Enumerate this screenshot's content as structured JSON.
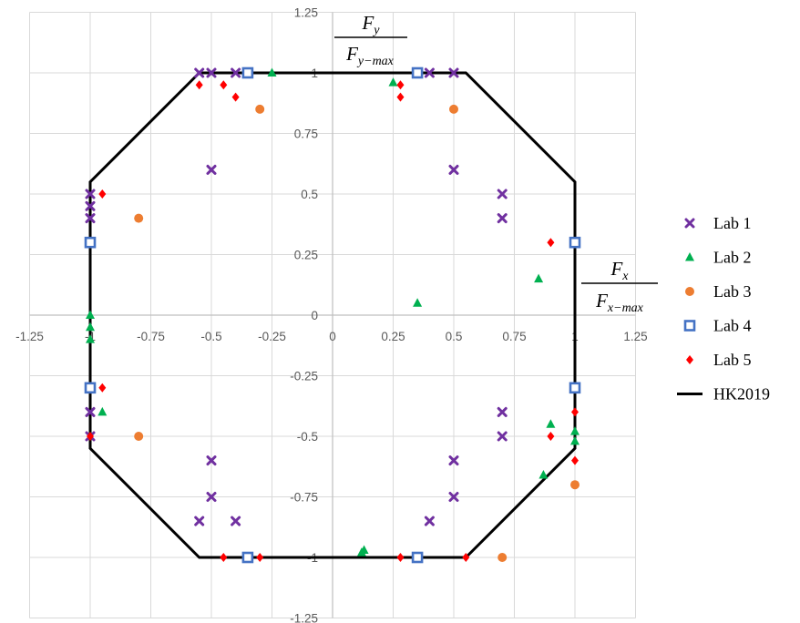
{
  "chart_data": {
    "type": "scatter",
    "xlim": [
      -1.25,
      1.25
    ],
    "ylim": [
      -1.25,
      1.25
    ],
    "x_ticks": [
      "-1.25",
      "-1",
      "-0.75",
      "-0.5",
      "-0.25",
      "0",
      "0.25",
      "0.5",
      "0.75",
      "1",
      "1.25"
    ],
    "y_ticks": [
      "1.25",
      "1",
      "0.75",
      "0.5",
      "0.25",
      "0",
      "-0.25",
      "-0.5",
      "-0.75",
      "-1",
      "-1.25"
    ],
    "grid": true,
    "legend_position": "right",
    "axis_labels": {
      "y": {
        "num": "F",
        "num_sub": "y",
        "den": "F",
        "den_sub": "y−max"
      },
      "x": {
        "num": "F",
        "num_sub": "x",
        "den": "F",
        "den_sub": "x−max"
      }
    },
    "series": [
      {
        "name": "Lab 1",
        "marker": "x",
        "color": "#7030A0",
        "points": [
          [
            -0.55,
            1
          ],
          [
            -0.5,
            1
          ],
          [
            -0.4,
            1
          ],
          [
            0.4,
            1
          ],
          [
            0.5,
            1
          ],
          [
            -0.5,
            0.6
          ],
          [
            0.5,
            0.6
          ],
          [
            0.7,
            0.5
          ],
          [
            0.7,
            0.4
          ],
          [
            -1,
            0.5
          ],
          [
            -1,
            0.45
          ],
          [
            -1,
            0.4
          ],
          [
            -1,
            -0.4
          ],
          [
            -1,
            -0.5
          ],
          [
            0.7,
            -0.4
          ],
          [
            0.7,
            -0.5
          ],
          [
            -0.5,
            -0.6
          ],
          [
            0.5,
            -0.6
          ],
          [
            -0.5,
            -0.75
          ],
          [
            0.5,
            -0.75
          ],
          [
            -0.55,
            -0.85
          ],
          [
            -0.4,
            -0.85
          ],
          [
            0.4,
            -0.85
          ]
        ]
      },
      {
        "name": "Lab 2",
        "marker": "triangle",
        "color": "#00B050",
        "points": [
          [
            -0.25,
            1
          ],
          [
            0.25,
            0.96
          ],
          [
            -1,
            0
          ],
          [
            -1,
            -0.05
          ],
          [
            -1,
            -0.1
          ],
          [
            0.85,
            0.15
          ],
          [
            0.35,
            0.05
          ],
          [
            -0.95,
            -0.4
          ],
          [
            0.9,
            -0.45
          ],
          [
            1,
            -0.48
          ],
          [
            1,
            -0.52
          ],
          [
            0.87,
            -0.66
          ],
          [
            0.13,
            -0.97
          ],
          [
            0.12,
            -0.98
          ]
        ]
      },
      {
        "name": "Lab 3",
        "marker": "circle",
        "color": "#ED7D31",
        "points": [
          [
            -0.3,
            0.85
          ],
          [
            0.5,
            0.85
          ],
          [
            -0.8,
            0.4
          ],
          [
            -0.8,
            -0.5
          ],
          [
            1,
            -0.7
          ],
          [
            0.7,
            -1
          ]
        ]
      },
      {
        "name": "Lab 4",
        "marker": "square",
        "color": "#4472C4",
        "points": [
          [
            -0.35,
            1
          ],
          [
            0.35,
            1
          ],
          [
            -1,
            0.3
          ],
          [
            1,
            0.3
          ],
          [
            -1,
            -0.3
          ],
          [
            1,
            -0.3
          ],
          [
            -0.35,
            -1
          ],
          [
            0.35,
            -1
          ]
        ]
      },
      {
        "name": "Lab 5",
        "marker": "diamond",
        "color": "#FF0000",
        "points": [
          [
            -0.55,
            0.95
          ],
          [
            -0.45,
            0.95
          ],
          [
            -0.4,
            0.9
          ],
          [
            0.28,
            0.95
          ],
          [
            0.28,
            0.9
          ],
          [
            -0.95,
            0.5
          ],
          [
            0.9,
            0.3
          ],
          [
            -0.95,
            -0.3
          ],
          [
            -1,
            -0.5
          ],
          [
            0.9,
            -0.5
          ],
          [
            1,
            -0.4
          ],
          [
            1,
            -0.6
          ],
          [
            -0.45,
            -1
          ],
          [
            -0.3,
            -1
          ],
          [
            0.28,
            -1
          ],
          [
            0.55,
            -1
          ]
        ]
      }
    ],
    "boundary": {
      "name": "HK2019",
      "color": "#000000",
      "points": [
        [
          -0.55,
          1
        ],
        [
          0.55,
          1
        ],
        [
          1,
          0.55
        ],
        [
          1,
          -0.55
        ],
        [
          0.55,
          -1
        ],
        [
          -0.55,
          -1
        ],
        [
          -1,
          -0.55
        ],
        [
          -1,
          0.55
        ],
        [
          -0.55,
          1
        ]
      ]
    }
  }
}
